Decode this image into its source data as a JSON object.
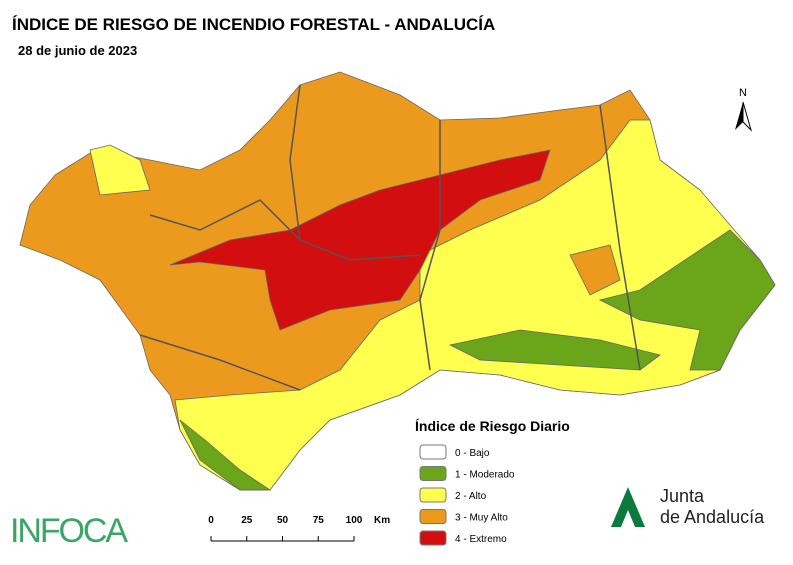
{
  "header": {
    "title": "ÍNDICE DE RIESGO DE INCENDIO FORESTAL - ANDALUCÍA",
    "date": "28 de junio de 2023"
  },
  "legend": {
    "title": "Índice de Riesgo Diario",
    "items": [
      {
        "label": "0 - Bajo",
        "color": "#ffffff"
      },
      {
        "label": "1 - Moderado",
        "color": "#6aa51a"
      },
      {
        "label": "2 - Alto",
        "color": "#ffff4f"
      },
      {
        "label": "3 - Muy Alto",
        "color": "#ec9a1e"
      },
      {
        "label": "4 - Extremo",
        "color": "#d30e0e"
      }
    ]
  },
  "scale": {
    "ticks": [
      0,
      25,
      50,
      75,
      100
    ],
    "unit": "Km"
  },
  "north": "N",
  "logos": {
    "infoca": "INFOCA",
    "junta": [
      "Junta",
      "de Andalucía"
    ]
  }
}
